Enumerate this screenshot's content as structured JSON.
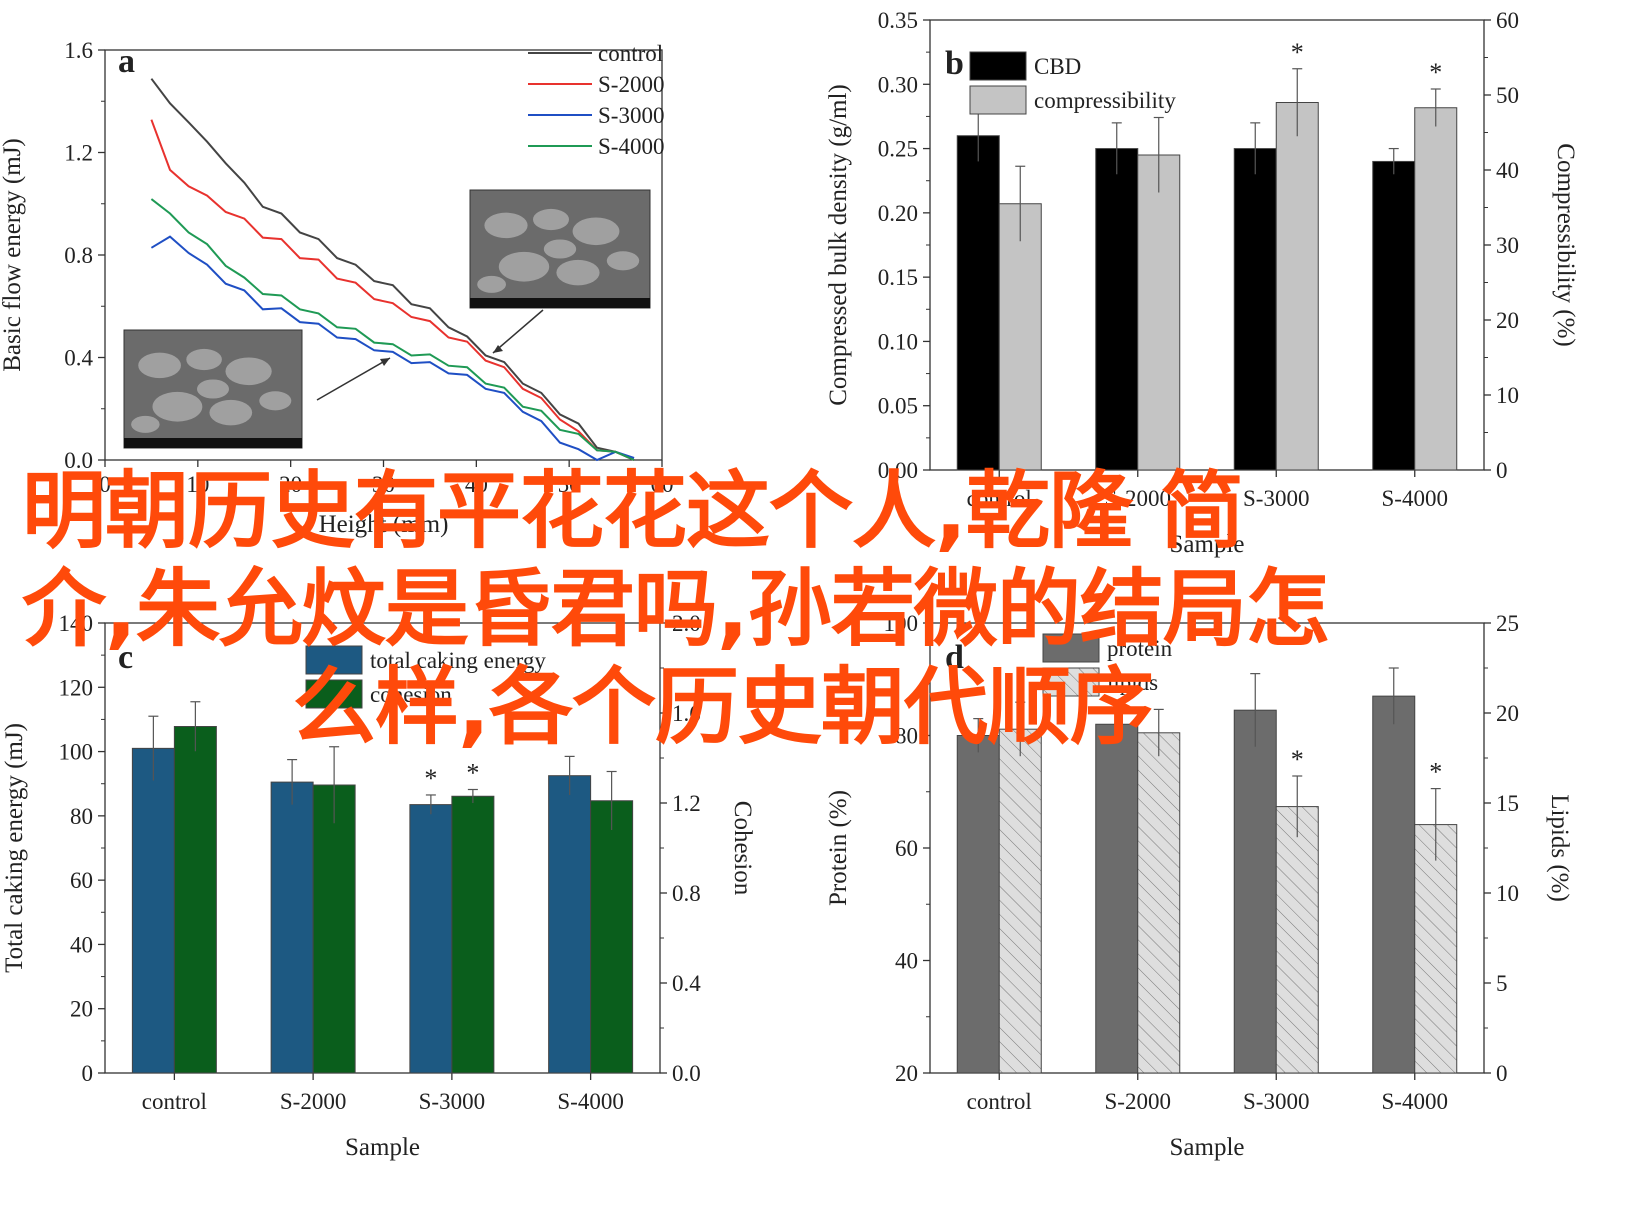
{
  "overlay_title": {
    "line1": "明朝历史有平花花这个人,乾隆 简",
    "line2": "介,朱允炆是昏君吗,孙若微的结局怎",
    "line3": "么样,各个历史朝代顺序"
  },
  "colors": {
    "title_orange": "#ff4a0a",
    "control": "#444444",
    "s2000": "#e8322e",
    "s3000": "#1f4fc4",
    "s4000": "#1f9a55",
    "cbd": "#000000",
    "compressibility": "#c4c4c4",
    "caking_blue": "#1d5982",
    "cohesion_green": "#0a5e1c",
    "protein": "#6c6c6c",
    "lipids": "#dcdcdc"
  },
  "chart_data": [
    {
      "panel": "a",
      "type": "line",
      "xlabel": "Height (mm)",
      "ylabel": "Basic flow energy (mJ)",
      "xlim": [
        0,
        60
      ],
      "ylim": [
        0,
        1.6
      ],
      "xticks": [
        0,
        10,
        20,
        30,
        40,
        50,
        60
      ],
      "yticks": [
        0.0,
        0.4,
        0.8,
        1.2,
        1.6
      ],
      "legend_position": "top-right",
      "series": [
        {
          "name": "control",
          "x": [
            5,
            7,
            9,
            11,
            13,
            15,
            17,
            19,
            21,
            23,
            25,
            27,
            29,
            31,
            33,
            35,
            37,
            39,
            41,
            43,
            45,
            47,
            49,
            51,
            53,
            55,
            57
          ],
          "y": [
            1.5,
            1.38,
            1.33,
            1.23,
            1.17,
            1.07,
            1.0,
            0.95,
            0.9,
            0.85,
            0.8,
            0.75,
            0.71,
            0.67,
            0.62,
            0.58,
            0.53,
            0.47,
            0.42,
            0.37,
            0.31,
            0.25,
            0.19,
            0.13,
            0.06,
            0.02,
            0.01
          ]
        },
        {
          "name": "S-2000",
          "x": [
            5,
            7,
            9,
            11,
            13,
            15,
            17,
            19,
            21,
            23,
            25,
            27,
            29,
            31,
            33,
            35,
            37,
            39,
            41,
            43,
            45,
            47,
            49,
            51,
            53,
            55,
            57
          ],
          "y": [
            1.34,
            1.12,
            1.08,
            1.02,
            0.98,
            0.93,
            0.88,
            0.85,
            0.8,
            0.77,
            0.72,
            0.68,
            0.64,
            0.6,
            0.57,
            0.53,
            0.49,
            0.45,
            0.4,
            0.35,
            0.29,
            0.23,
            0.17,
            0.1,
            0.05,
            0.02,
            0.01
          ]
        },
        {
          "name": "S-3000",
          "x": [
            5,
            7,
            9,
            11,
            13,
            15,
            17,
            19,
            21,
            23,
            25,
            27,
            29,
            31,
            33,
            35,
            37,
            39,
            41,
            43,
            45,
            47,
            49,
            51,
            53,
            55,
            57
          ],
          "y": [
            0.84,
            0.86,
            0.82,
            0.75,
            0.7,
            0.65,
            0.6,
            0.58,
            0.55,
            0.52,
            0.49,
            0.46,
            0.44,
            0.41,
            0.39,
            0.37,
            0.35,
            0.32,
            0.29,
            0.25,
            0.2,
            0.14,
            0.08,
            0.03,
            0.01,
            0.02,
            0.02
          ]
        },
        {
          "name": "S-4000",
          "x": [
            5,
            7,
            9,
            11,
            13,
            15,
            17,
            19,
            21,
            23,
            25,
            27,
            29,
            31,
            33,
            35,
            37,
            39,
            41,
            43,
            45,
            47,
            49,
            51,
            53,
            55,
            57
          ],
          "y": [
            1.03,
            0.95,
            0.9,
            0.83,
            0.77,
            0.7,
            0.66,
            0.63,
            0.6,
            0.56,
            0.53,
            0.5,
            0.47,
            0.44,
            0.42,
            0.4,
            0.38,
            0.35,
            0.31,
            0.27,
            0.22,
            0.18,
            0.13,
            0.09,
            0.05,
            0.02,
            0.01
          ]
        }
      ]
    },
    {
      "panel": "b",
      "type": "bar",
      "categories": [
        "control",
        "S-2000",
        "S-3000",
        "S-4000"
      ],
      "xlabel": "Sample",
      "ylabel": "Compressed bulk density (g/ml)",
      "y2label": "Compressibility (%)",
      "ylim": [
        0.0,
        0.35
      ],
      "y2lim": [
        0,
        60
      ],
      "yticks": [
        0.0,
        0.05,
        0.1,
        0.15,
        0.2,
        0.25,
        0.3,
        0.35
      ],
      "y2ticks": [
        0,
        10,
        20,
        30,
        40,
        50,
        60
      ],
      "legend_position": "top-left",
      "series": [
        {
          "name": "CBD",
          "axis": "left",
          "values": [
            0.26,
            0.25,
            0.25,
            0.24
          ],
          "errors": [
            0.02,
            0.02,
            0.02,
            0.01
          ],
          "stars": [
            false,
            false,
            false,
            false
          ]
        },
        {
          "name": "compressibility",
          "axis": "right",
          "values": [
            35.5,
            42,
            49,
            48.3
          ],
          "errors": [
            5,
            5,
            4.5,
            2.5
          ],
          "stars": [
            false,
            false,
            true,
            true
          ]
        }
      ]
    },
    {
      "panel": "c",
      "type": "bar",
      "categories": [
        "control",
        "S-2000",
        "S-3000",
        "S-4000"
      ],
      "xlabel": "Sample",
      "ylabel": "Total caking energy (mJ)",
      "y2label": "Cohesion",
      "ylim": [
        0,
        140
      ],
      "y2lim": [
        0.0,
        2.0
      ],
      "yticks": [
        0,
        20,
        40,
        60,
        80,
        100,
        120,
        140
      ],
      "y2ticks": [
        0.0,
        0.4,
        0.8,
        1.2,
        1.6,
        2.0
      ],
      "legend_position": "top-center",
      "series": [
        {
          "name": "total caking energy",
          "axis": "left",
          "values": [
            101,
            90.5,
            83.5,
            92.5
          ],
          "errors": [
            10,
            7,
            3,
            6
          ],
          "stars": [
            false,
            false,
            true,
            false
          ]
        },
        {
          "name": "cohesion",
          "axis": "right",
          "values": [
            1.54,
            1.28,
            1.23,
            1.21
          ],
          "errors": [
            0.11,
            0.17,
            0.03,
            0.13
          ],
          "stars": [
            false,
            false,
            true,
            false
          ]
        }
      ]
    },
    {
      "panel": "d",
      "type": "bar",
      "categories": [
        "control",
        "S-2000",
        "S-3000",
        "S-4000"
      ],
      "xlabel": "Sample",
      "ylabel": "Protein (%)",
      "y2label": "Lipids (%)",
      "ylim": [
        20,
        100
      ],
      "y2lim": [
        0,
        25
      ],
      "yticks": [
        20,
        40,
        60,
        80,
        100
      ],
      "y2ticks": [
        0,
        5,
        10,
        15,
        20,
        25
      ],
      "legend_position": "top-left",
      "series": [
        {
          "name": "protein",
          "axis": "left",
          "values": [
            80,
            82,
            84.5,
            87
          ],
          "errors": [
            3,
            3,
            6.5,
            5
          ],
          "stars": [
            false,
            false,
            false,
            false
          ]
        },
        {
          "name": "lipids",
          "axis": "right",
          "values": [
            19.1,
            18.9,
            14.8,
            13.8
          ],
          "errors": [
            1.5,
            1.3,
            1.7,
            2
          ],
          "stars": [
            false,
            false,
            true,
            true
          ]
        }
      ]
    }
  ],
  "panel_labels": [
    "a",
    "b",
    "c",
    "d"
  ]
}
